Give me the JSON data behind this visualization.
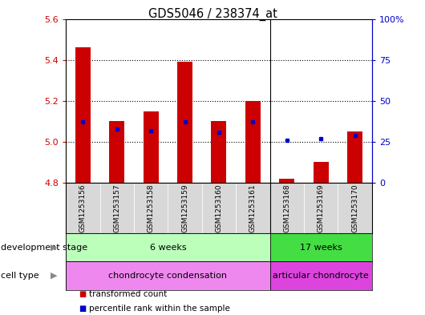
{
  "title": "GDS5046 / 238374_at",
  "samples": [
    "GSM1253156",
    "GSM1253157",
    "GSM1253158",
    "GSM1253159",
    "GSM1253160",
    "GSM1253161",
    "GSM1253168",
    "GSM1253169",
    "GSM1253170"
  ],
  "transformed_count": [
    5.46,
    5.1,
    5.15,
    5.39,
    5.1,
    5.2,
    4.82,
    4.9,
    5.05
  ],
  "percentile_rank": [
    37,
    33,
    32,
    37,
    31,
    37,
    26,
    27,
    29
  ],
  "ylim_left": [
    4.8,
    5.6
  ],
  "ylim_right": [
    0,
    100
  ],
  "yticks_left": [
    4.8,
    5.0,
    5.2,
    5.4,
    5.6
  ],
  "yticks_right": [
    0,
    25,
    50,
    75,
    100
  ],
  "bar_color": "#cc0000",
  "dot_color": "#0000cc",
  "bar_base": 4.8,
  "group_split": 6,
  "development_stage_groups": [
    {
      "label": "6 weeks",
      "start": 0,
      "end": 6,
      "color": "#bbffbb"
    },
    {
      "label": "17 weeks",
      "start": 6,
      "end": 9,
      "color": "#44dd44"
    }
  ],
  "cell_type_groups": [
    {
      "label": "chondrocyte condensation",
      "start": 0,
      "end": 6,
      "color": "#ee88ee"
    },
    {
      "label": "articular chondrocyte",
      "start": 6,
      "end": 9,
      "color": "#dd44dd"
    }
  ],
  "legend_items": [
    {
      "color": "#cc0000",
      "label": "transformed count"
    },
    {
      "color": "#0000cc",
      "label": "percentile rank within the sample"
    }
  ],
  "bg_color": "#ffffff",
  "axis_bg": "#d8d8d8",
  "row_label_dev": "development stage",
  "row_label_ct": "cell type"
}
